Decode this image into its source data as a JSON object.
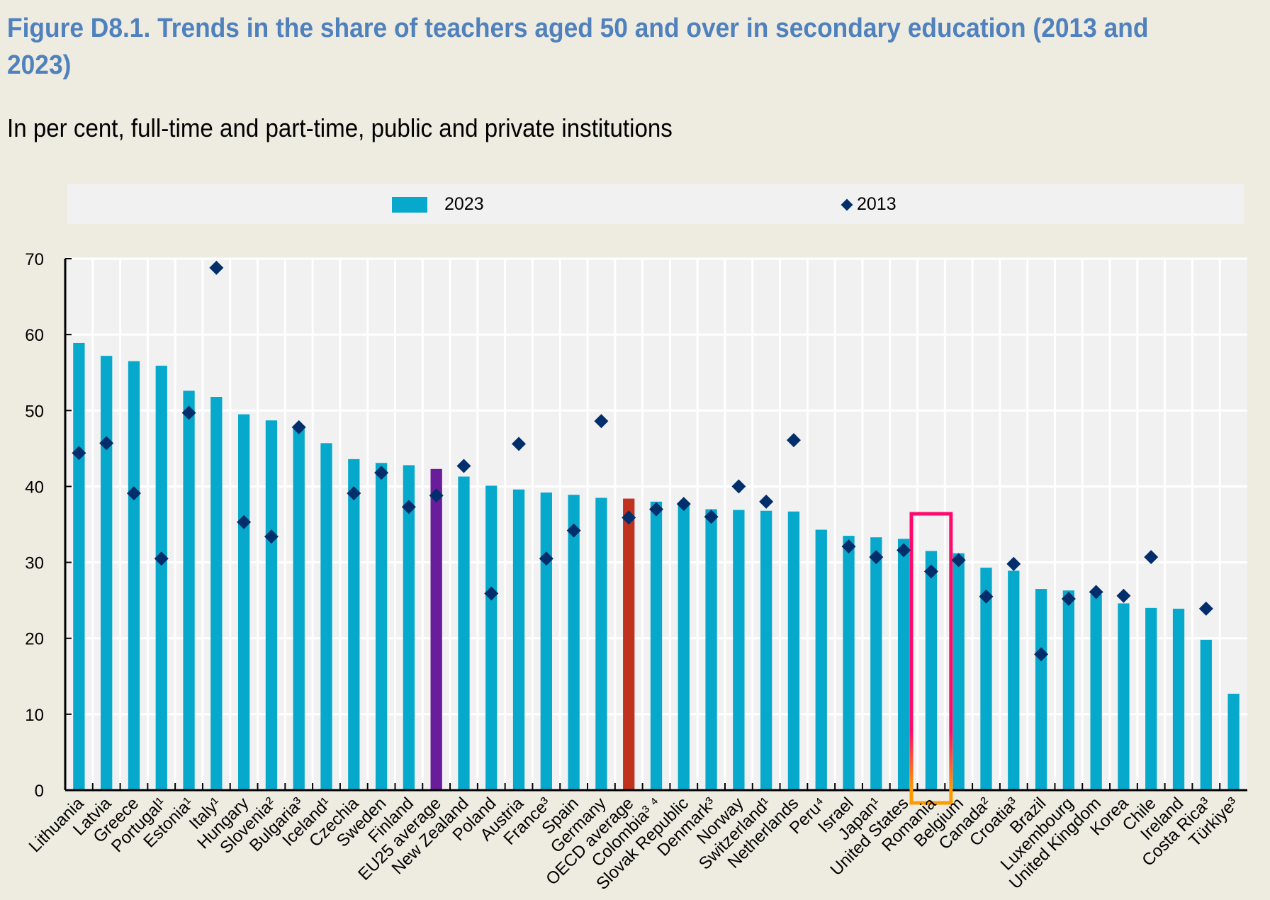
{
  "header": {
    "title": "Figure D8.1. Trends in the share of teachers aged 50 and over in secondary education (2013 and 2023)",
    "subtitle": "In per cent, full-time and part-time, public and private institutions"
  },
  "colors": {
    "bar_2023": "#06a9cc",
    "marker_2013": "#022f6b",
    "eu_average": "#6a1d9a",
    "oecd_average": "#c0311e",
    "highlight_box_top": "#ff0a6c",
    "highlight_box_bottom": "#ff9a00",
    "plot_bg": "#f1f1f1"
  },
  "legend": [
    {
      "label": "2023",
      "marker": "bar"
    },
    {
      "label": "2013",
      "marker": "diamond"
    }
  ],
  "chart_data": {
    "type": "bar",
    "title": "Figure D8.1. Trends in the share of teachers aged 50 and over in secondary education (2013 and 2023)",
    "subtitle": "In per cent, full-time and part-time, public and private institutions",
    "xlabel": "",
    "ylabel": "",
    "ylim": [
      0,
      70
    ],
    "yticks": [
      0,
      10,
      20,
      30,
      40,
      50,
      60,
      70
    ],
    "grid": true,
    "legend_position": "top",
    "categories": [
      "Lithuania",
      "Latvia",
      "Greece",
      "Portugal¹",
      "Estonia¹",
      "Italy¹",
      "Hungary",
      "Slovenia²",
      "Bulgaria³",
      "Iceland¹",
      "Czechia",
      "Sweden",
      "Finland",
      "EU25 average",
      "New Zealand",
      "Poland",
      "Austria",
      "France³",
      "Spain",
      "Germany",
      "OECD average",
      "Colombia³ ⁴",
      "Slovak Republic",
      "Denmark³",
      "Norway",
      "Switzerland¹",
      "Netherlands",
      "Peru⁴",
      "Israel",
      "Japan¹",
      "United States",
      "Romania",
      "Belgium",
      "Canada²",
      "Croatia³",
      "Brazil",
      "Luxembourg",
      "United Kingdom",
      "Korea",
      "Chile",
      "Ireland",
      "Costa Rica³",
      "Türkiye³"
    ],
    "series": [
      {
        "name": "2023",
        "type": "bar",
        "values": [
          58.9,
          57.2,
          56.5,
          55.9,
          52.6,
          51.8,
          49.5,
          48.7,
          48.0,
          45.7,
          43.6,
          43.1,
          42.8,
          42.3,
          41.3,
          40.1,
          39.6,
          39.2,
          38.9,
          38.5,
          38.4,
          38.0,
          37.6,
          37.0,
          36.9,
          36.8,
          36.7,
          34.3,
          33.5,
          33.3,
          33.1,
          31.5,
          31.2,
          29.3,
          28.9,
          26.5,
          26.3,
          25.8,
          24.6,
          24.0,
          23.9,
          19.8,
          12.7
        ]
      },
      {
        "name": "2013",
        "type": "scatter-diamond",
        "values": [
          44.4,
          45.7,
          39.1,
          30.5,
          49.7,
          68.8,
          35.3,
          33.4,
          47.8,
          null,
          39.1,
          41.8,
          37.3,
          38.8,
          42.7,
          25.9,
          45.6,
          30.5,
          34.2,
          48.6,
          35.9,
          37.0,
          37.7,
          36.0,
          40.0,
          38.0,
          46.1,
          null,
          32.1,
          30.7,
          31.6,
          28.8,
          30.3,
          25.5,
          29.8,
          17.9,
          25.2,
          26.1,
          25.6,
          30.7,
          null,
          23.9,
          null
        ]
      }
    ],
    "special_bars": {
      "EU25 average": "eu_average",
      "OECD average": "oecd_average"
    },
    "highlighted_category": "Romania"
  }
}
